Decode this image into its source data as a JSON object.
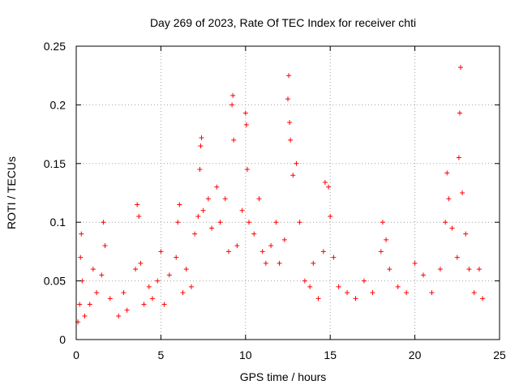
{
  "chart_data": {
    "type": "scatter",
    "title": "Day 269 of 2023, Rate Of TEC Index for receiver chti",
    "xlabel": "GPS time / hours",
    "ylabel": "ROTI / TECUs",
    "xlim": [
      0,
      25
    ],
    "ylim": [
      0,
      0.25
    ],
    "x_ticks": [
      0,
      5,
      10,
      15,
      20,
      25
    ],
    "x_tick_labels": [
      "0",
      "5",
      "10",
      "15",
      "20",
      "25"
    ],
    "y_ticks": [
      0,
      0.05,
      0.1,
      0.15,
      0.2,
      0.25
    ],
    "y_tick_labels": [
      "0",
      "0.05",
      "0.1",
      "0.15",
      "0.2",
      "0.25"
    ],
    "grid": true,
    "marker": "plus",
    "color": "#ff0000",
    "series": [
      {
        "points": [
          [
            0.1,
            0.015
          ],
          [
            0.2,
            0.03
          ],
          [
            0.25,
            0.07
          ],
          [
            0.3,
            0.09
          ],
          [
            0.35,
            0.05
          ],
          [
            0.5,
            0.02
          ],
          [
            0.8,
            0.03
          ],
          [
            1.0,
            0.06
          ],
          [
            1.2,
            0.04
          ],
          [
            1.5,
            0.055
          ],
          [
            1.6,
            0.1
          ],
          [
            1.7,
            0.08
          ],
          [
            2.0,
            0.035
          ],
          [
            2.5,
            0.02
          ],
          [
            2.8,
            0.04
          ],
          [
            3.0,
            0.025
          ],
          [
            3.5,
            0.06
          ],
          [
            3.6,
            0.115
          ],
          [
            3.7,
            0.105
          ],
          [
            3.8,
            0.065
          ],
          [
            4.0,
            0.03
          ],
          [
            4.3,
            0.045
          ],
          [
            4.5,
            0.035
          ],
          [
            4.8,
            0.05
          ],
          [
            5.0,
            0.075
          ],
          [
            5.2,
            0.03
          ],
          [
            5.5,
            0.055
          ],
          [
            5.9,
            0.07
          ],
          [
            6.0,
            0.1
          ],
          [
            6.1,
            0.115
          ],
          [
            6.3,
            0.04
          ],
          [
            6.5,
            0.06
          ],
          [
            6.8,
            0.045
          ],
          [
            7.0,
            0.09
          ],
          [
            7.2,
            0.105
          ],
          [
            7.3,
            0.145
          ],
          [
            7.35,
            0.165
          ],
          [
            7.4,
            0.172
          ],
          [
            7.5,
            0.11
          ],
          [
            7.8,
            0.12
          ],
          [
            8.0,
            0.095
          ],
          [
            8.3,
            0.13
          ],
          [
            8.5,
            0.1
          ],
          [
            8.8,
            0.12
          ],
          [
            9.0,
            0.075
          ],
          [
            9.2,
            0.2
          ],
          [
            9.25,
            0.208
          ],
          [
            9.3,
            0.17
          ],
          [
            9.5,
            0.08
          ],
          [
            9.8,
            0.11
          ],
          [
            10.0,
            0.193
          ],
          [
            10.05,
            0.183
          ],
          [
            10.1,
            0.145
          ],
          [
            10.2,
            0.1
          ],
          [
            10.5,
            0.09
          ],
          [
            10.8,
            0.12
          ],
          [
            11.0,
            0.075
          ],
          [
            11.2,
            0.065
          ],
          [
            11.5,
            0.08
          ],
          [
            11.8,
            0.1
          ],
          [
            12.0,
            0.065
          ],
          [
            12.3,
            0.085
          ],
          [
            12.5,
            0.205
          ],
          [
            12.55,
            0.225
          ],
          [
            12.6,
            0.185
          ],
          [
            12.65,
            0.17
          ],
          [
            12.8,
            0.14
          ],
          [
            13.0,
            0.15
          ],
          [
            13.2,
            0.1
          ],
          [
            13.5,
            0.05
          ],
          [
            13.8,
            0.045
          ],
          [
            14.0,
            0.065
          ],
          [
            14.3,
            0.035
          ],
          [
            14.6,
            0.075
          ],
          [
            14.7,
            0.134
          ],
          [
            14.9,
            0.13
          ],
          [
            15.0,
            0.105
          ],
          [
            15.2,
            0.07
          ],
          [
            15.5,
            0.045
          ],
          [
            16.0,
            0.04
          ],
          [
            16.5,
            0.035
          ],
          [
            17.0,
            0.05
          ],
          [
            17.5,
            0.04
          ],
          [
            18.0,
            0.075
          ],
          [
            18.1,
            0.1
          ],
          [
            18.3,
            0.085
          ],
          [
            18.5,
            0.06
          ],
          [
            19.0,
            0.045
          ],
          [
            19.5,
            0.04
          ],
          [
            20.0,
            0.065
          ],
          [
            20.5,
            0.055
          ],
          [
            21.0,
            0.04
          ],
          [
            21.5,
            0.06
          ],
          [
            21.8,
            0.1
          ],
          [
            21.9,
            0.142
          ],
          [
            22.0,
            0.12
          ],
          [
            22.2,
            0.095
          ],
          [
            22.5,
            0.07
          ],
          [
            22.6,
            0.155
          ],
          [
            22.65,
            0.193
          ],
          [
            22.7,
            0.232
          ],
          [
            22.8,
            0.125
          ],
          [
            23.0,
            0.09
          ],
          [
            23.2,
            0.06
          ],
          [
            23.5,
            0.04
          ],
          [
            23.8,
            0.06
          ],
          [
            24.0,
            0.035
          ]
        ]
      }
    ]
  }
}
